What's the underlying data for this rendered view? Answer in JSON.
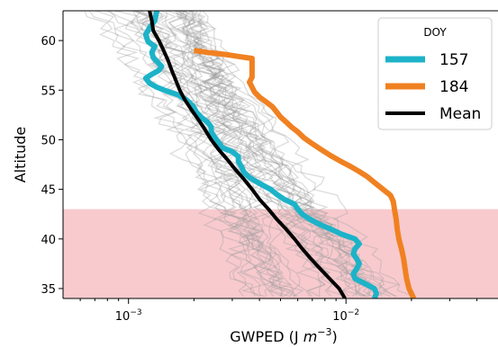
{
  "chart_data": {
    "type": "line",
    "xlabel": "GWPED (J m⁻³)",
    "ylabel": "Altitude",
    "xscale": "log",
    "xlim": [
      0.0005,
      0.05
    ],
    "ylim": [
      34,
      63
    ],
    "y_ticks": [
      35,
      40,
      45,
      50,
      55,
      60
    ],
    "x_ticks": [
      {
        "value": 0.001,
        "base": "10",
        "exp": "−3"
      },
      {
        "value": 0.01,
        "base": "10",
        "exp": "−2"
      }
    ],
    "shaded_band": {
      "y_from": 34,
      "y_to": 43,
      "color": "#f4a6ad"
    },
    "legend": {
      "title": "DOY",
      "placement": "top-right"
    },
    "background_profiles_color": "#9e9e9e",
    "series": [
      {
        "name": "157",
        "color": "#1cb3c8",
        "points": [
          [
            0.00135,
            63.0
          ],
          [
            0.00132,
            62.0
          ],
          [
            0.00125,
            61.3
          ],
          [
            0.0012,
            60.6
          ],
          [
            0.00123,
            59.9
          ],
          [
            0.00132,
            59.4
          ],
          [
            0.00128,
            58.8
          ],
          [
            0.0013,
            58.3
          ],
          [
            0.00135,
            57.9
          ],
          [
            0.00142,
            57.4
          ],
          [
            0.00138,
            57.0
          ],
          [
            0.00128,
            56.6
          ],
          [
            0.0012,
            56.2
          ],
          [
            0.00125,
            55.7
          ],
          [
            0.00135,
            55.3
          ],
          [
            0.0015,
            54.9
          ],
          [
            0.0017,
            54.5
          ],
          [
            0.00185,
            54.0
          ],
          [
            0.00198,
            53.4
          ],
          [
            0.00205,
            52.8
          ],
          [
            0.00215,
            52.3
          ],
          [
            0.0023,
            51.8
          ],
          [
            0.0024,
            51.3
          ],
          [
            0.0024,
            50.8
          ],
          [
            0.0025,
            50.2
          ],
          [
            0.0026,
            49.7
          ],
          [
            0.0027,
            49.2
          ],
          [
            0.003,
            48.8
          ],
          [
            0.0032,
            48.3
          ],
          [
            0.0032,
            47.8
          ],
          [
            0.0033,
            47.3
          ],
          [
            0.0034,
            46.7
          ],
          [
            0.0036,
            46.2
          ],
          [
            0.004,
            45.6
          ],
          [
            0.0045,
            45.0
          ],
          [
            0.0048,
            44.5
          ],
          [
            0.0052,
            44.0
          ],
          [
            0.0058,
            43.5
          ],
          [
            0.006,
            43.0
          ],
          [
            0.0063,
            42.5
          ],
          [
            0.0068,
            42.0
          ],
          [
            0.0075,
            41.5
          ],
          [
            0.0085,
            41.0
          ],
          [
            0.0095,
            40.5
          ],
          [
            0.011,
            40.0
          ],
          [
            0.0115,
            39.5
          ],
          [
            0.011,
            39.0
          ],
          [
            0.0108,
            38.5
          ],
          [
            0.0112,
            38.0
          ],
          [
            0.0115,
            37.5
          ],
          [
            0.0112,
            37.0
          ],
          [
            0.0108,
            36.5
          ],
          [
            0.011,
            36.0
          ],
          [
            0.0122,
            35.5
          ],
          [
            0.0135,
            35.0
          ],
          [
            0.0138,
            34.5
          ],
          [
            0.0135,
            34.0
          ]
        ]
      },
      {
        "name": "184",
        "color": "#f08121",
        "points": [
          [
            0.002,
            59.0
          ],
          [
            0.0023,
            58.8
          ],
          [
            0.0028,
            58.6
          ],
          [
            0.0032,
            58.4
          ],
          [
            0.0037,
            58.2
          ],
          [
            0.0037,
            57.5
          ],
          [
            0.0037,
            56.9
          ],
          [
            0.0037,
            56.3
          ],
          [
            0.0036,
            55.8
          ],
          [
            0.0037,
            55.3
          ],
          [
            0.0038,
            54.8
          ],
          [
            0.004,
            54.3
          ],
          [
            0.0043,
            53.8
          ],
          [
            0.0046,
            53.3
          ],
          [
            0.0048,
            52.8
          ],
          [
            0.005,
            52.3
          ],
          [
            0.0053,
            51.8
          ],
          [
            0.0056,
            51.3
          ],
          [
            0.006,
            50.8
          ],
          [
            0.0064,
            50.2
          ],
          [
            0.007,
            49.6
          ],
          [
            0.0077,
            49.0
          ],
          [
            0.0085,
            48.4
          ],
          [
            0.0095,
            47.8
          ],
          [
            0.0105,
            47.3
          ],
          [
            0.0115,
            46.8
          ],
          [
            0.0125,
            46.3
          ],
          [
            0.0135,
            45.7
          ],
          [
            0.0148,
            45.0
          ],
          [
            0.016,
            44.4
          ],
          [
            0.0165,
            43.8
          ],
          [
            0.0167,
            43.0
          ],
          [
            0.017,
            42.0
          ],
          [
            0.0172,
            41.0
          ],
          [
            0.0175,
            40.0
          ],
          [
            0.018,
            39.0
          ],
          [
            0.0184,
            38.0
          ],
          [
            0.0187,
            37.0
          ],
          [
            0.019,
            36.0
          ],
          [
            0.0195,
            35.0
          ],
          [
            0.0205,
            34.0
          ]
        ]
      },
      {
        "name": "Mean",
        "color": "#000000",
        "points": [
          [
            0.00125,
            63.0
          ],
          [
            0.00128,
            62.0
          ],
          [
            0.0013,
            61.0
          ],
          [
            0.00138,
            60.0
          ],
          [
            0.00145,
            59.0
          ],
          [
            0.00152,
            58.0
          ],
          [
            0.00158,
            57.0
          ],
          [
            0.00165,
            56.0
          ],
          [
            0.00172,
            55.0
          ],
          [
            0.00182,
            54.0
          ],
          [
            0.00195,
            53.0
          ],
          [
            0.0021,
            52.0
          ],
          [
            0.00225,
            51.0
          ],
          [
            0.0024,
            50.0
          ],
          [
            0.0026,
            49.0
          ],
          [
            0.00285,
            48.0
          ],
          [
            0.0031,
            47.0
          ],
          [
            0.0034,
            46.0
          ],
          [
            0.0037,
            45.0
          ],
          [
            0.004,
            44.0
          ],
          [
            0.0044,
            43.0
          ],
          [
            0.0048,
            42.0
          ],
          [
            0.0053,
            41.0
          ],
          [
            0.0058,
            40.0
          ],
          [
            0.0063,
            39.0
          ],
          [
            0.0069,
            38.0
          ],
          [
            0.0076,
            37.0
          ],
          [
            0.0084,
            36.0
          ],
          [
            0.0093,
            35.0
          ],
          [
            0.0099,
            34.0
          ]
        ]
      }
    ]
  }
}
